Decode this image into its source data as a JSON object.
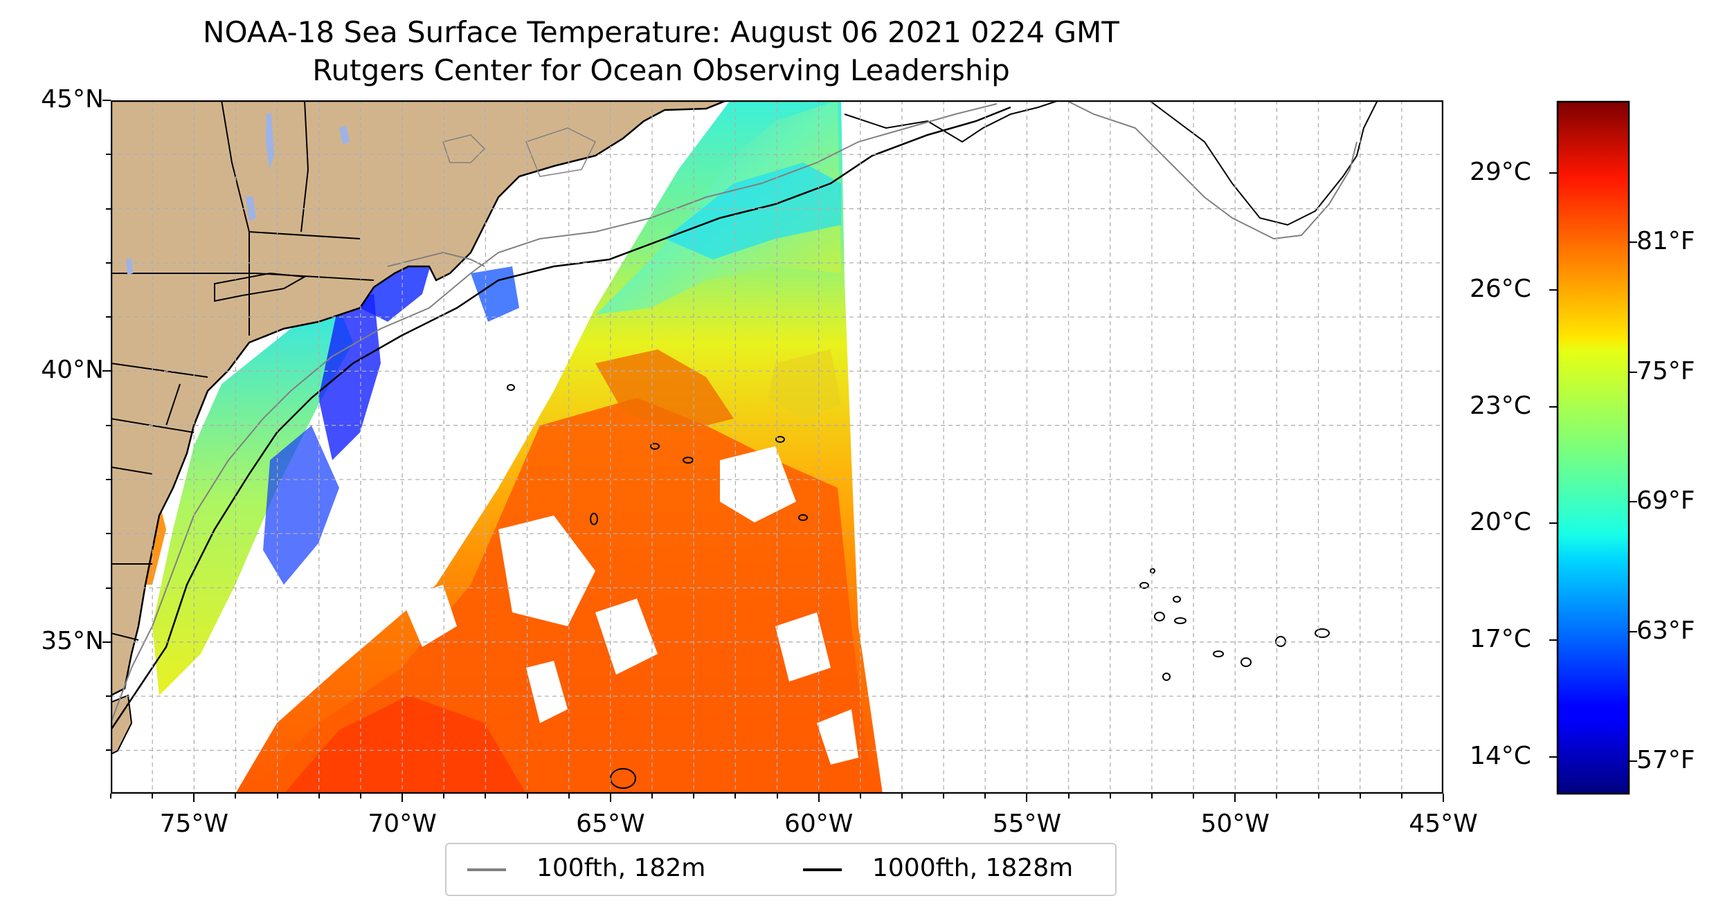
{
  "title": {
    "line1": "NOAA-18 Sea Surface Temperature: August 06 2021 0224 GMT",
    "line2": "Rutgers Center for Ocean Observing Leadership"
  },
  "map": {
    "lat_range": [
      32.2,
      45
    ],
    "lon_range": [
      -77,
      -45
    ],
    "grid": "dashed gray, every 1°",
    "lat_ticks": [
      {
        "value": 45,
        "label": "45°N"
      },
      {
        "value": 40,
        "label": "40°N"
      },
      {
        "value": 35,
        "label": "35°N"
      }
    ],
    "lon_ticks": [
      {
        "value": -75,
        "label": "75°W"
      },
      {
        "value": -70,
        "label": "70°W"
      },
      {
        "value": -65,
        "label": "65°W"
      },
      {
        "value": -60,
        "label": "60°W"
      },
      {
        "value": -55,
        "label": "55°W"
      },
      {
        "value": -50,
        "label": "50°W"
      },
      {
        "value": -45,
        "label": "45°W"
      }
    ],
    "land_color": "#d2b48c",
    "lake_color": "#9db3e8"
  },
  "colorbar": {
    "colormap": "jet",
    "range_f": [
      55.5,
      87.5
    ],
    "celsius_ticks": [
      {
        "value": 14,
        "label": "14°C"
      },
      {
        "value": 17,
        "label": "17°C"
      },
      {
        "value": 20,
        "label": "20°C"
      },
      {
        "value": 23,
        "label": "23°C"
      },
      {
        "value": 26,
        "label": "26°C"
      },
      {
        "value": 29,
        "label": "29°C"
      }
    ],
    "fahrenheit_ticks": [
      {
        "value": 57,
        "label": "57°F"
      },
      {
        "value": 63,
        "label": "63°F"
      },
      {
        "value": 69,
        "label": "69°F"
      },
      {
        "value": 75,
        "label": "75°F"
      },
      {
        "value": 81,
        "label": "81°F"
      }
    ]
  },
  "legend": {
    "items": [
      {
        "label": "100fth, 182m",
        "color": "#808080"
      },
      {
        "label": "1000fth, 1828m",
        "color": "#000000"
      }
    ]
  }
}
